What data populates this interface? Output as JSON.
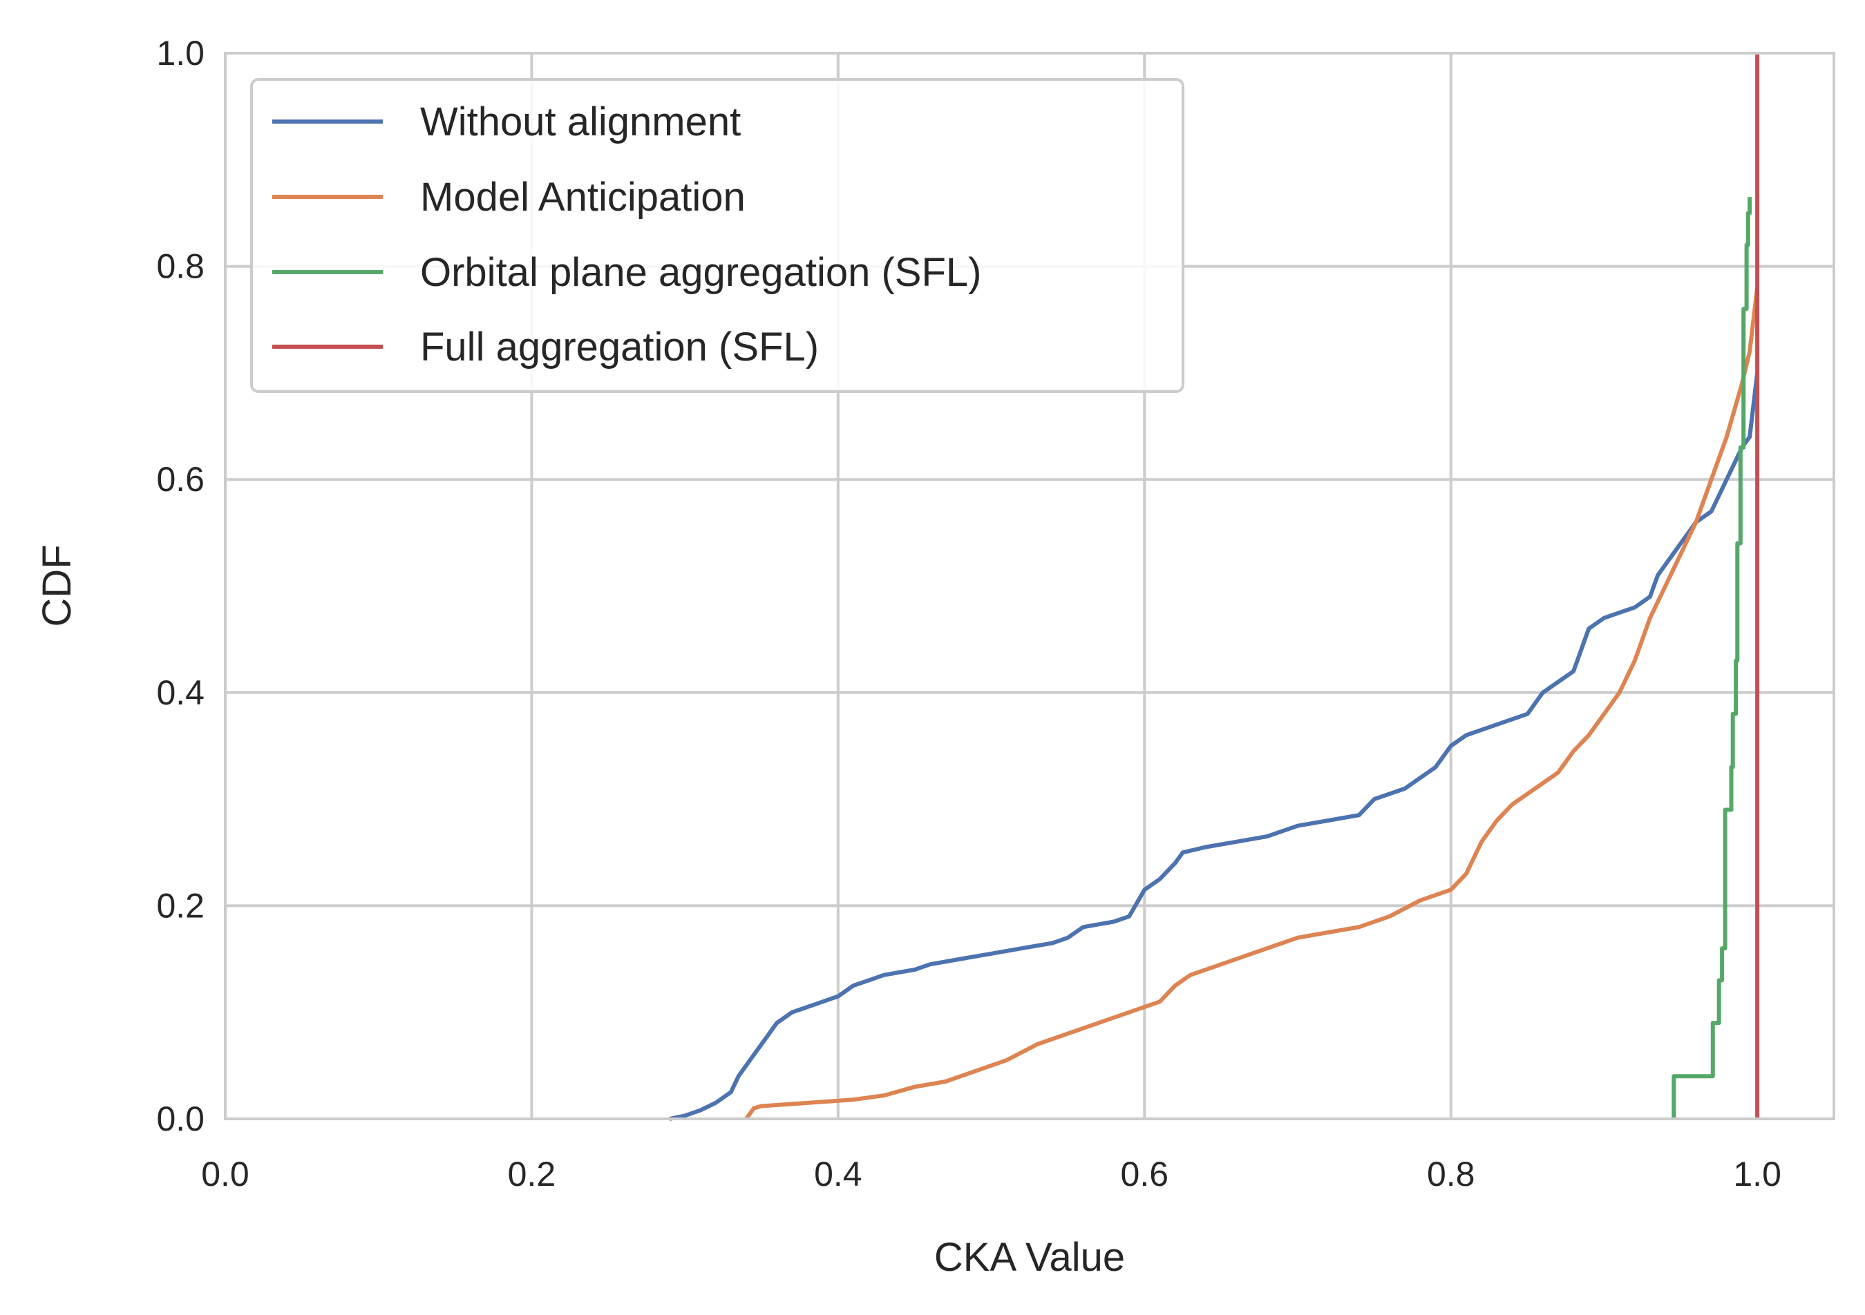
{
  "chart_data": {
    "type": "line",
    "title": "",
    "xlabel": "CKA Value",
    "ylabel": "CDF",
    "xlim": [
      0.0,
      1.05
    ],
    "ylim": [
      0.0,
      1.0
    ],
    "xticks": [
      "0.0",
      "0.2",
      "0.4",
      "0.6",
      "0.8",
      "1.0"
    ],
    "yticks": [
      "0.0",
      "0.2",
      "0.4",
      "0.6",
      "0.8",
      "1.0"
    ],
    "grid": true,
    "legend_position": "top-left",
    "series": [
      {
        "name": "Without alignment",
        "color": "#4c72b0",
        "x": [
          0.29,
          0.3,
          0.31,
          0.32,
          0.33,
          0.335,
          0.34,
          0.345,
          0.355,
          0.36,
          0.365,
          0.37,
          0.38,
          0.39,
          0.4,
          0.41,
          0.42,
          0.43,
          0.45,
          0.46,
          0.48,
          0.5,
          0.52,
          0.54,
          0.55,
          0.56,
          0.58,
          0.59,
          0.6,
          0.61,
          0.62,
          0.625,
          0.64,
          0.66,
          0.68,
          0.7,
          0.72,
          0.74,
          0.75,
          0.77,
          0.79,
          0.8,
          0.81,
          0.83,
          0.85,
          0.86,
          0.87,
          0.88,
          0.89,
          0.9,
          0.91,
          0.92,
          0.93,
          0.935,
          0.94,
          0.95,
          0.96,
          0.97,
          0.98,
          0.99,
          0.995,
          1.0
        ],
        "y": [
          0.0,
          0.003,
          0.008,
          0.015,
          0.025,
          0.04,
          0.05,
          0.06,
          0.08,
          0.09,
          0.095,
          0.1,
          0.105,
          0.11,
          0.115,
          0.125,
          0.13,
          0.135,
          0.14,
          0.145,
          0.15,
          0.155,
          0.16,
          0.165,
          0.17,
          0.18,
          0.185,
          0.19,
          0.215,
          0.225,
          0.24,
          0.25,
          0.255,
          0.26,
          0.265,
          0.275,
          0.28,
          0.285,
          0.3,
          0.31,
          0.33,
          0.35,
          0.36,
          0.37,
          0.38,
          0.4,
          0.41,
          0.42,
          0.46,
          0.47,
          0.475,
          0.48,
          0.49,
          0.51,
          0.52,
          0.54,
          0.56,
          0.57,
          0.6,
          0.63,
          0.64,
          0.7
        ]
      },
      {
        "name": "Model Anticipation",
        "color": "#dd8452",
        "x": [
          0.34,
          0.345,
          0.35,
          0.38,
          0.41,
          0.43,
          0.45,
          0.47,
          0.49,
          0.51,
          0.53,
          0.55,
          0.57,
          0.59,
          0.61,
          0.62,
          0.63,
          0.65,
          0.67,
          0.69,
          0.7,
          0.72,
          0.74,
          0.76,
          0.78,
          0.8,
          0.81,
          0.82,
          0.83,
          0.84,
          0.85,
          0.86,
          0.87,
          0.88,
          0.89,
          0.9,
          0.91,
          0.92,
          0.93,
          0.94,
          0.95,
          0.96,
          0.97,
          0.98,
          0.99,
          0.995,
          1.0
        ],
        "y": [
          0.0,
          0.01,
          0.012,
          0.015,
          0.018,
          0.022,
          0.03,
          0.035,
          0.045,
          0.055,
          0.07,
          0.08,
          0.09,
          0.1,
          0.11,
          0.125,
          0.135,
          0.145,
          0.155,
          0.165,
          0.17,
          0.175,
          0.18,
          0.19,
          0.205,
          0.215,
          0.23,
          0.26,
          0.28,
          0.295,
          0.305,
          0.315,
          0.325,
          0.345,
          0.36,
          0.38,
          0.4,
          0.43,
          0.47,
          0.5,
          0.53,
          0.56,
          0.6,
          0.64,
          0.69,
          0.72,
          0.78
        ]
      },
      {
        "name": "Orbital plane aggregation (SFL)",
        "color": "#55a868",
        "x": [
          0.9455,
          0.9455,
          0.971,
          0.971,
          0.975,
          0.975,
          0.977,
          0.977,
          0.979,
          0.979,
          0.983,
          0.983,
          0.984,
          0.984,
          0.986,
          0.986,
          0.987,
          0.987,
          0.989,
          0.989,
          0.991,
          0.991,
          0.993,
          0.993,
          0.994,
          0.994,
          0.995,
          0.995
        ],
        "y": [
          0.0,
          0.04,
          0.04,
          0.09,
          0.09,
          0.13,
          0.13,
          0.16,
          0.16,
          0.29,
          0.29,
          0.33,
          0.33,
          0.38,
          0.38,
          0.43,
          0.43,
          0.54,
          0.54,
          0.63,
          0.63,
          0.76,
          0.76,
          0.82,
          0.82,
          0.85,
          0.85,
          0.865
        ]
      },
      {
        "name": "Full aggregation (SFL)",
        "color": "#c44e52",
        "x": [
          1.0,
          1.0
        ],
        "y": [
          0.0,
          1.0
        ]
      }
    ]
  }
}
